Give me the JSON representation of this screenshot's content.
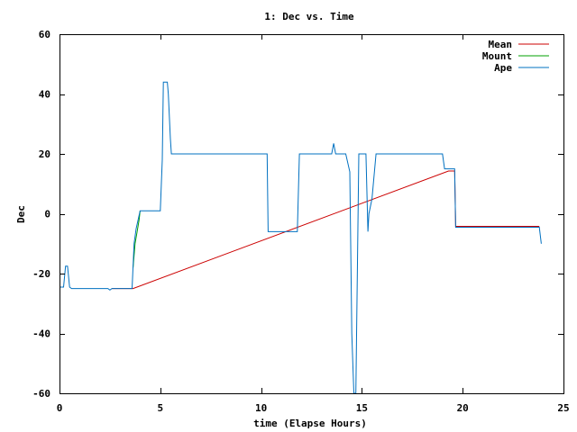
{
  "chart_data": {
    "type": "line",
    "title": "1: Dec vs. Time",
    "xlabel": "time (Elapse Hours)",
    "ylabel": "Dec",
    "xlim": [
      0,
      25
    ],
    "ylim": [
      -60,
      60
    ],
    "xticks": [
      0,
      5,
      10,
      15,
      20,
      25
    ],
    "yticks": [
      -60,
      -40,
      -20,
      0,
      20,
      40,
      60
    ],
    "grid": false,
    "legend_position": "top-right",
    "series": [
      {
        "name": "Mean",
        "color": "#cc0000",
        "x": [
          2.6,
          3.6,
          3.65,
          19.3,
          19.35,
          19.6,
          19.65,
          23.8
        ],
        "y": [
          -25,
          -25,
          -25,
          14.3,
          14.3,
          14.3,
          -4.2,
          -4.2
        ]
      },
      {
        "name": "Mount",
        "color": "#00a000",
        "x": [
          3.65,
          3.75,
          3.85,
          3.95,
          4.0
        ],
        "y": [
          -18,
          -10,
          -6,
          -2,
          1
        ]
      },
      {
        "name": "Ape",
        "color": "#0070c0",
        "x": [
          0,
          0.2,
          0.3,
          0.4,
          0.5,
          0.6,
          1.5,
          2.4,
          2.5,
          2.6,
          3.6,
          3.7,
          3.8,
          4.0,
          5.0,
          5.1,
          5.15,
          5.35,
          5.4,
          5.5,
          5.55,
          10.3,
          10.35,
          11.8,
          11.9,
          13.5,
          13.6,
          13.7,
          14.2,
          14.4,
          14.5,
          14.6,
          14.7,
          14.85,
          14.9,
          15.2,
          15.3,
          15.35,
          15.5,
          15.7,
          19.0,
          19.1,
          19.2,
          19.6,
          19.65,
          23.8,
          23.9
        ],
        "y": [
          -24.5,
          -24.5,
          -17.5,
          -17.5,
          -24.5,
          -25,
          -25,
          -25,
          -25.5,
          -25,
          -25,
          -10,
          -5,
          1,
          1,
          18,
          44,
          44,
          40,
          25,
          20,
          20,
          -6,
          -6,
          20,
          20,
          23.5,
          20,
          20,
          14,
          -40,
          -60,
          -60,
          20,
          20,
          20,
          -6,
          0,
          5,
          20,
          20,
          15,
          15,
          15,
          -4.5,
          -4.5,
          -10
        ]
      }
    ]
  }
}
